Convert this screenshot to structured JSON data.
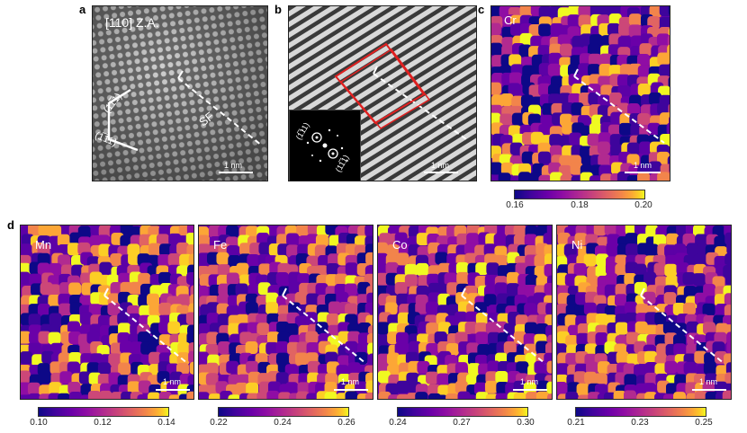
{
  "panels": {
    "a": {
      "letter": "a",
      "zone_axis": "[110] Z.A.",
      "sf_label": "SF",
      "plane1": "(11̅1)",
      "plane2": "(1̅11)",
      "scale": "1 nm"
    },
    "b": {
      "letter": "b",
      "scale": "1 nm",
      "fft_spot1": "(1̅11)",
      "fft_spot2": "(11̅1)"
    },
    "c": {
      "letter": "c",
      "element": "Cr",
      "scale": "1 nm",
      "colorbar": [
        "0.16",
        "0.18",
        "0.20"
      ]
    },
    "d": {
      "letter": "d",
      "maps": [
        {
          "element": "Mn",
          "scale": "1 nm",
          "colorbar": [
            "0.10",
            "0.12",
            "0.14"
          ]
        },
        {
          "element": "Fe",
          "scale": "1 nm",
          "colorbar": [
            "0.22",
            "0.24",
            "0.26"
          ]
        },
        {
          "element": "Co",
          "scale": "1 nm",
          "colorbar": [
            "0.24",
            "0.27",
            "0.30"
          ]
        },
        {
          "element": "Ni",
          "scale": "1 nm",
          "colorbar": [
            "0.21",
            "0.23",
            "0.25"
          ]
        }
      ]
    }
  },
  "colors": {
    "colormap": "plasma",
    "frame_red": "#e02020"
  }
}
